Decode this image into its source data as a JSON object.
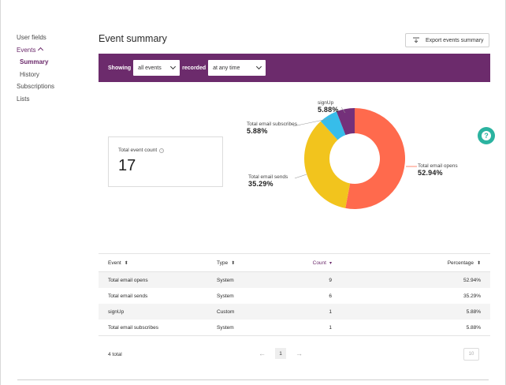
{
  "sidebar": {
    "items": [
      {
        "label": "User fields"
      },
      {
        "label": "Events"
      },
      {
        "label": "Summary"
      },
      {
        "label": "History"
      },
      {
        "label": "Subscriptions"
      },
      {
        "label": "Lists"
      }
    ]
  },
  "header": {
    "title": "Event summary",
    "export_label": "Export events summary"
  },
  "filter": {
    "showing_label": "Showing",
    "event_select": "all events",
    "recorded_label": "recorded",
    "time_select": "at any time"
  },
  "metric": {
    "label": "Total event count",
    "value": "17"
  },
  "chart_data": {
    "type": "pie",
    "donut": true,
    "categories": [
      "Total email opens",
      "Total email sends",
      "Total email subscribes",
      "signUp"
    ],
    "values": [
      52.94,
      35.29,
      5.88,
      5.88
    ],
    "labels": [
      "52.94%",
      "35.29%",
      "5.88%",
      "5.88%"
    ],
    "colors": [
      "#ff6a4d",
      "#f2c41d",
      "#37bdea",
      "#74307a"
    ]
  },
  "table": {
    "headers": [
      "Event",
      "Type",
      "Count",
      "Percentage"
    ],
    "rows": [
      [
        "Total email opens",
        "System",
        "9",
        "52.94%"
      ],
      [
        "Total email sends",
        "System",
        "6",
        "35.29%"
      ],
      [
        "signUp",
        "Custom",
        "1",
        "5.88%"
      ],
      [
        "Total email subscribes",
        "System",
        "1",
        "5.88%"
      ]
    ]
  },
  "footer": {
    "total": "4 total",
    "prev": "←",
    "page": "1",
    "next": "→",
    "per_page": "10"
  },
  "help": {
    "glyph": "?"
  }
}
